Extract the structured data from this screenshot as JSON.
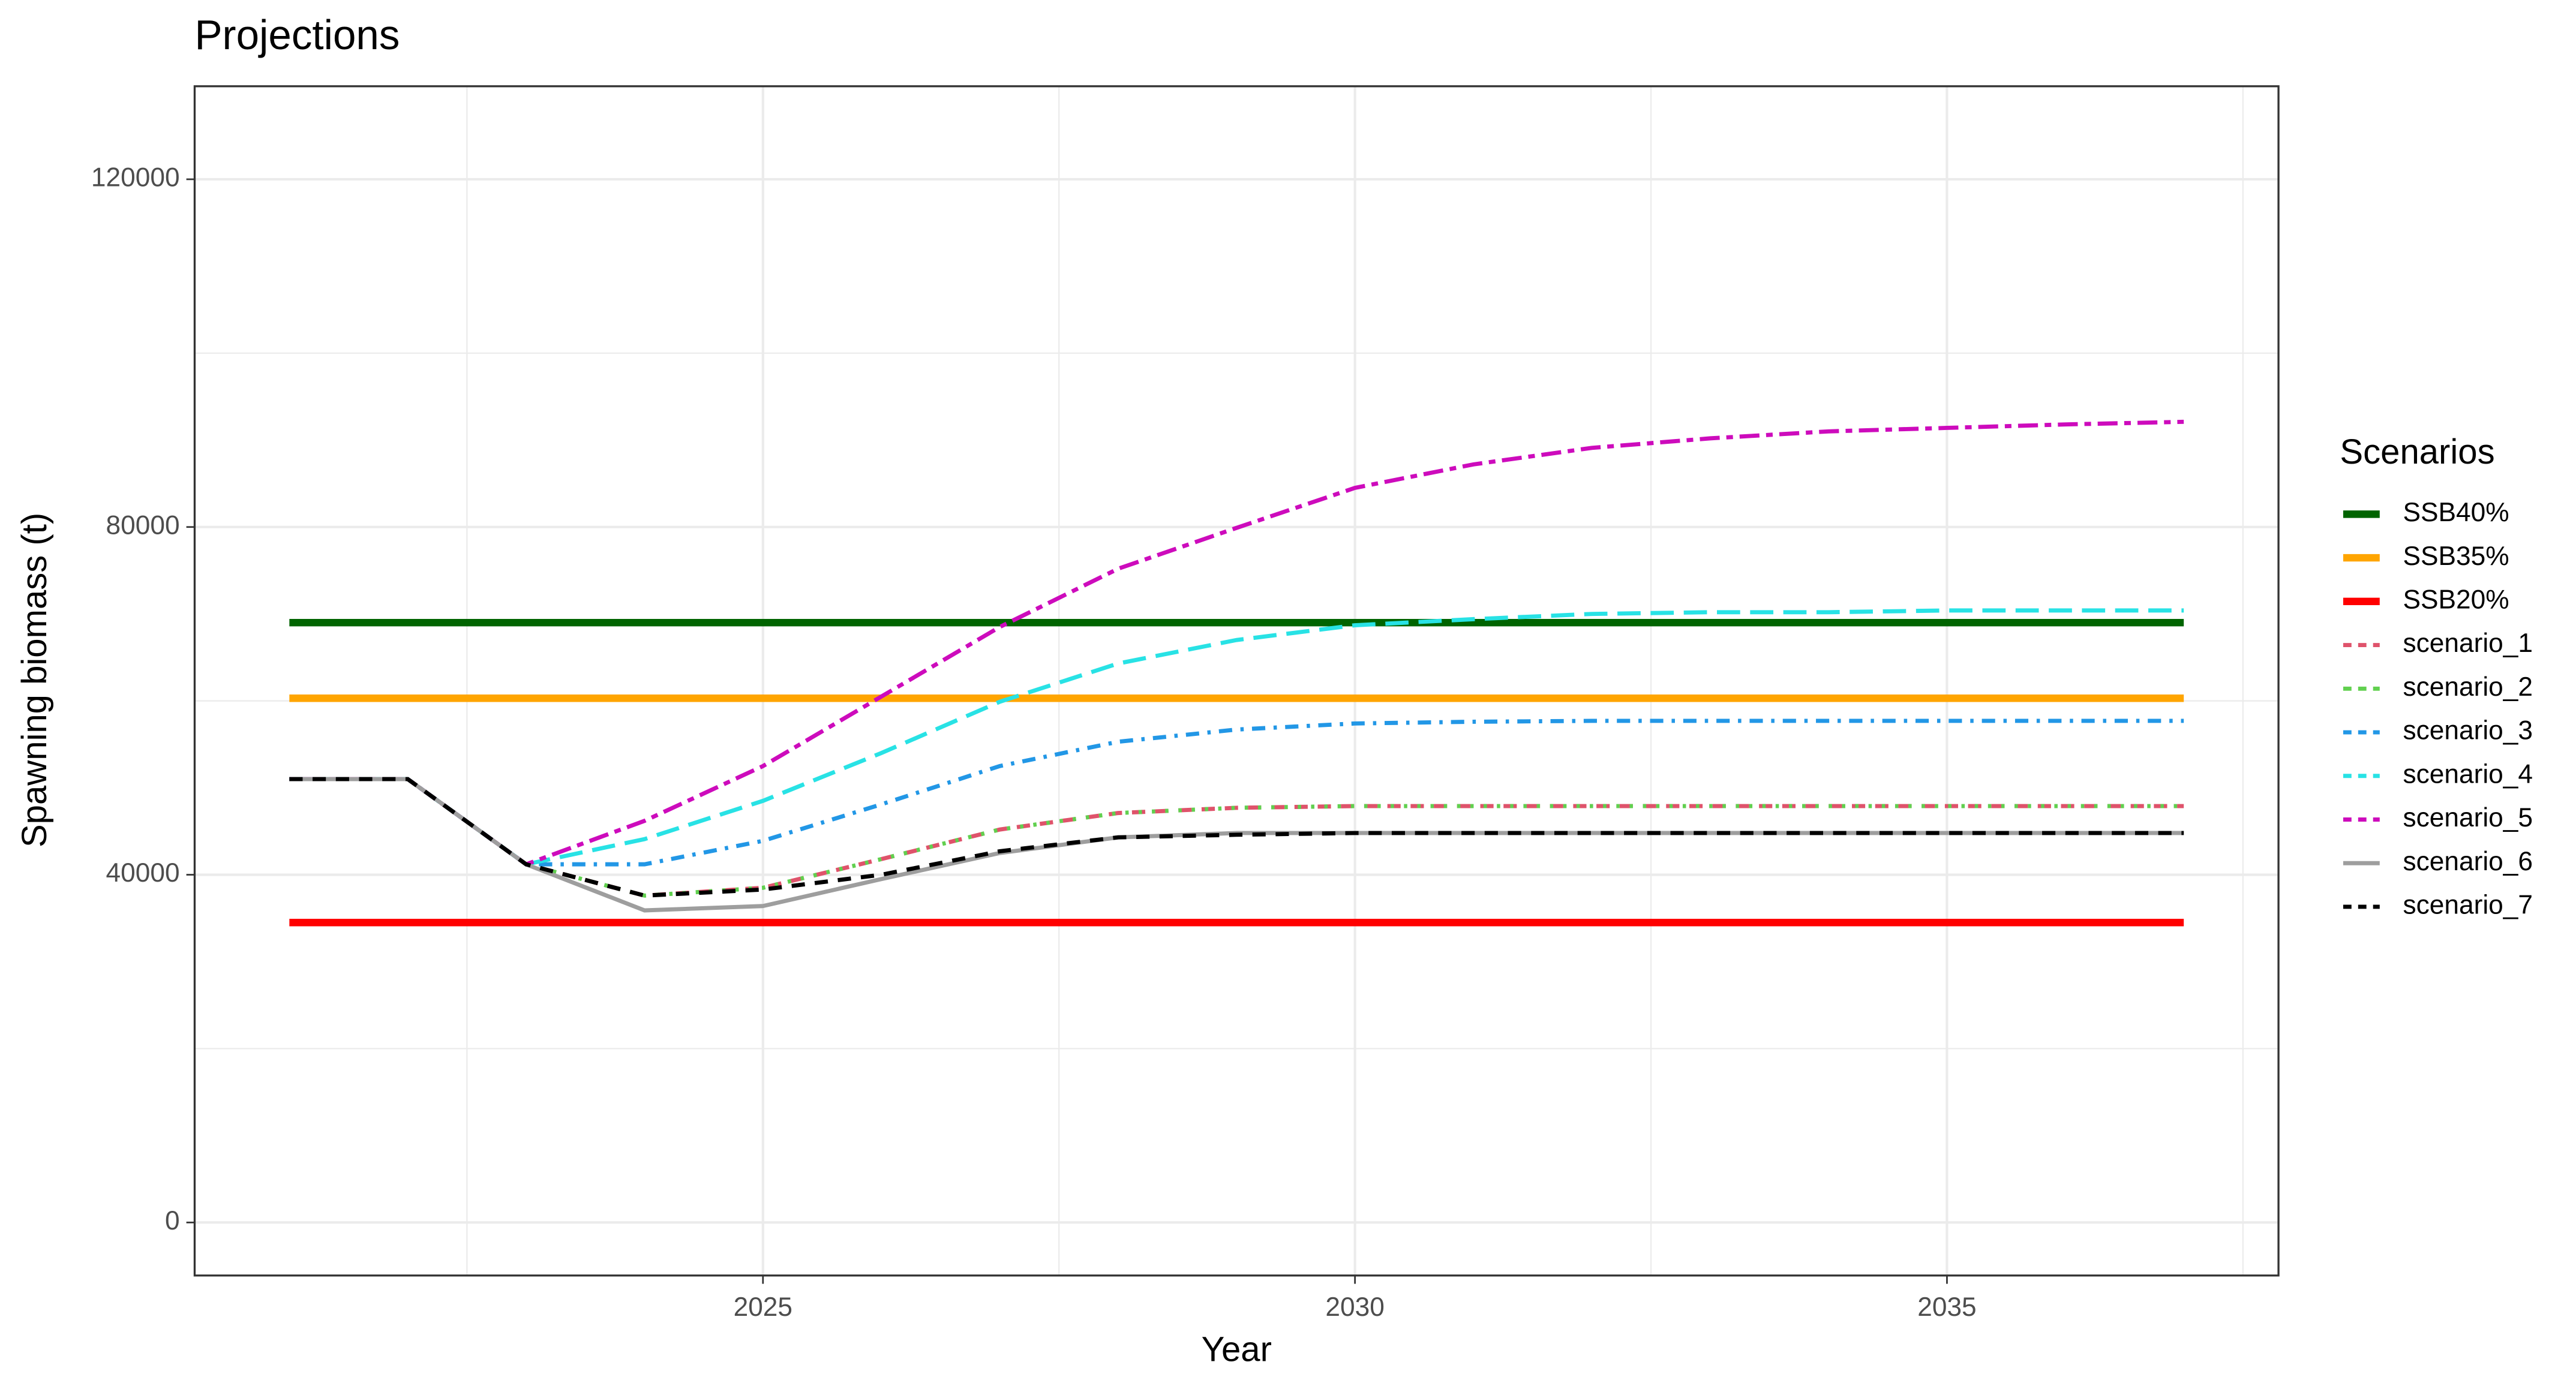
{
  "chart_data": {
    "type": "line",
    "title": "Projections",
    "x_label": "Year",
    "y_label": "Spawning biomass (t)",
    "x": [
      2021,
      2022,
      2023,
      2024,
      2025,
      2026,
      2027,
      2028,
      2029,
      2030,
      2031,
      2032,
      2033,
      2034,
      2035,
      2036,
      2037
    ],
    "xlim": [
      2020.2,
      2037.8
    ],
    "xticks": [
      2025,
      2030,
      2035
    ],
    "x_minor_grid": [
      2022.5,
      2027.5,
      2032.5,
      2037.5
    ],
    "ylim": [
      -6100,
      130700
    ],
    "yticks": [
      0,
      40000,
      80000,
      120000
    ],
    "y_minor_grid": [
      20000,
      60000,
      100000
    ],
    "grid": true,
    "legend_title": "Scenarios",
    "legend_position": "right",
    "series": [
      {
        "name": "SSB40%",
        "color": "#006400",
        "linetype": "solid-thick",
        "values": [
          69000,
          69000,
          69000,
          69000,
          69000,
          69000,
          69000,
          69000,
          69000,
          69000,
          69000,
          69000,
          69000,
          69000,
          69000,
          69000,
          69000
        ]
      },
      {
        "name": "SSB35%",
        "color": "#FFA500",
        "linetype": "solid-thick",
        "values": [
          60300,
          60300,
          60300,
          60300,
          60300,
          60300,
          60300,
          60300,
          60300,
          60300,
          60300,
          60300,
          60300,
          60300,
          60300,
          60300,
          60300
        ]
      },
      {
        "name": "SSB20%",
        "color": "#FF0000",
        "linetype": "solid-thick",
        "values": [
          34500,
          34500,
          34500,
          34500,
          34500,
          34500,
          34500,
          34500,
          34500,
          34500,
          34500,
          34500,
          34500,
          34500,
          34500,
          34500,
          34500
        ]
      },
      {
        "name": "scenario_1",
        "color": "#DF536B",
        "linetype": "dashed",
        "values": [
          51000,
          51000,
          41200,
          37600,
          38500,
          41800,
          45200,
          47100,
          47700,
          47900,
          47900,
          47900,
          47900,
          47900,
          47900,
          47900,
          47900
        ]
      },
      {
        "name": "scenario_2",
        "color": "#61D04F",
        "linetype": "dotted",
        "values": [
          51000,
          51000,
          41200,
          37600,
          38500,
          41800,
          45200,
          47100,
          47700,
          47900,
          47900,
          47900,
          47900,
          47900,
          47900,
          47900,
          47900
        ]
      },
      {
        "name": "scenario_3",
        "color": "#2297E6",
        "linetype": "dotdash",
        "values": [
          51000,
          51000,
          41200,
          41200,
          43900,
          48100,
          52500,
          55300,
          56700,
          57400,
          57600,
          57700,
          57700,
          57700,
          57700,
          57700,
          57700
        ]
      },
      {
        "name": "scenario_4",
        "color": "#28E2E5",
        "linetype": "longdash",
        "values": [
          51000,
          51000,
          41200,
          44100,
          48500,
          54000,
          59900,
          64300,
          67000,
          68700,
          69400,
          70000,
          70200,
          70200,
          70400,
          70400,
          70400
        ]
      },
      {
        "name": "scenario_5",
        "color": "#CD0BBC",
        "linetype": "twodash",
        "values": [
          51000,
          51000,
          41200,
          46200,
          52500,
          60500,
          68500,
          75200,
          79900,
          84500,
          87200,
          89100,
          90200,
          91000,
          91400,
          91800,
          92100
        ]
      },
      {
        "name": "scenario_6",
        "color": "#9E9E9E",
        "linetype": "solid",
        "values": [
          51000,
          51000,
          41200,
          35900,
          36400,
          39500,
          42500,
          44300,
          44800,
          44800,
          44800,
          44800,
          44800,
          44800,
          44800,
          44800,
          44800
        ]
      },
      {
        "name": "scenario_7",
        "color": "#000000",
        "linetype": "dashed",
        "values": [
          51000,
          51000,
          41200,
          37600,
          38300,
          40000,
          42700,
          44300,
          44600,
          44800,
          44800,
          44800,
          44800,
          44800,
          44800,
          44800,
          44800
        ]
      }
    ]
  }
}
